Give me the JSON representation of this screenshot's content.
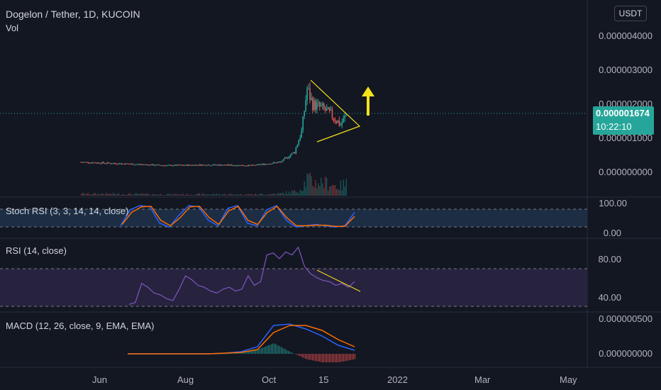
{
  "header": {
    "title": "Dogelon / Tether, 1D, KUCOIN",
    "vol_label": "Vol",
    "currency_button": "USDT"
  },
  "price_badge": {
    "price": "0.000001674",
    "countdown": "10:22:10"
  },
  "colors": {
    "background": "#131722",
    "up": "#26a69a",
    "down": "#ef5350",
    "annotation": "#f5e21b",
    "stoch_k": "#2962ff",
    "stoch_d": "#ff6d00",
    "rsi": "#7e57c2",
    "macd": "#2962ff",
    "signal": "#ff6d00"
  },
  "chart_data": [
    {
      "type": "candlestick",
      "title": "Dogelon / Tether, 1D, KUCOIN",
      "y_ticks": [
        "0.000004000",
        "0.000003000",
        "0.000002000",
        "0.000001000",
        "0.000000000"
      ],
      "ylim": [
        0,
        4.5e-06
      ],
      "current_price": 1.674e-06,
      "x_ticks": [
        "Jun",
        "Aug",
        "Oct",
        "15",
        "2022",
        "Mar",
        "May"
      ],
      "approx_closes": [
        {
          "date": "2021-05-20",
          "close": 3e-07
        },
        {
          "date": "2021-06-20",
          "close": 2.5e-07
        },
        {
          "date": "2021-07-20",
          "close": 2e-07
        },
        {
          "date": "2021-08-20",
          "close": 2.2e-07
        },
        {
          "date": "2021-09-20",
          "close": 2e-07
        },
        {
          "date": "2021-10-10",
          "close": 3e-07
        },
        {
          "date": "2021-10-20",
          "close": 6e-07
        },
        {
          "date": "2021-10-25",
          "close": 1.2e-06
        },
        {
          "date": "2021-10-29",
          "close": 2.45e-06
        },
        {
          "date": "2021-11-02",
          "close": 2e-06
        },
        {
          "date": "2021-11-08",
          "close": 1.9e-06
        },
        {
          "date": "2021-11-15",
          "close": 1.7e-06
        },
        {
          "date": "2021-11-22",
          "close": 1.4e-06
        },
        {
          "date": "2021-11-26",
          "close": 1.67e-06
        }
      ],
      "annotations": [
        "symmetrical triangle",
        "up arrow"
      ]
    },
    {
      "type": "line",
      "title": "Stoch RSI (3, 3, 14, 14, close)",
      "y_ticks": [
        "100.00",
        "0.00"
      ],
      "bands": [
        80,
        20
      ],
      "ylim": [
        0,
        100
      ],
      "series": [
        {
          "values": [
            20,
            80,
            95,
            90,
            30,
            15,
            60,
            95,
            90,
            40,
            20,
            85,
            95,
            30,
            20,
            80,
            95,
            40,
            15,
            20,
            25,
            20,
            15,
            20,
            70
          ]
        },
        {
          "values": [
            25,
            70,
            90,
            92,
            40,
            20,
            50,
            90,
            92,
            50,
            25,
            75,
            92,
            40,
            25,
            70,
            92,
            50,
            20,
            20,
            22,
            22,
            18,
            18,
            55
          ]
        }
      ]
    },
    {
      "type": "line",
      "title": "RSI (14, close)",
      "y_ticks": [
        "80.00",
        "40.00"
      ],
      "bands": [
        70,
        30
      ],
      "ylim": [
        25,
        95
      ],
      "series": [
        {
          "values": [
            30,
            32,
            52,
            48,
            42,
            40,
            36,
            34,
            46,
            60,
            56,
            50,
            48,
            44,
            42,
            46,
            48,
            44,
            46,
            60,
            50,
            54,
            82,
            84,
            78,
            85,
            82,
            90,
            70,
            62,
            58,
            55,
            54,
            50,
            52,
            48,
            54
          ]
        }
      ],
      "annotations": [
        "descending trendline"
      ]
    },
    {
      "type": "line",
      "title": "MACD (12, 26, close, 9, EMA, EMA)",
      "y_ticks": [
        "0.000000500",
        "0.000000000"
      ],
      "ylim": [
        -1e-07,
        5e-07
      ],
      "series": [
        {
          "values": [
            0,
            0,
            0,
            0,
            0,
            0,
            1e-08,
            3e-08,
            1e-07,
            4e-07,
            4.2e-07,
            3.5e-07,
            2.5e-07,
            1.2e-07,
            5e-08
          ]
        },
        {
          "values": [
            0,
            0,
            0,
            0,
            0,
            0,
            1e-08,
            2e-08,
            6e-08,
            3e-07,
            4e-07,
            4e-07,
            3.3e-07,
            2e-07,
            1e-07
          ]
        }
      ]
    }
  ]
}
